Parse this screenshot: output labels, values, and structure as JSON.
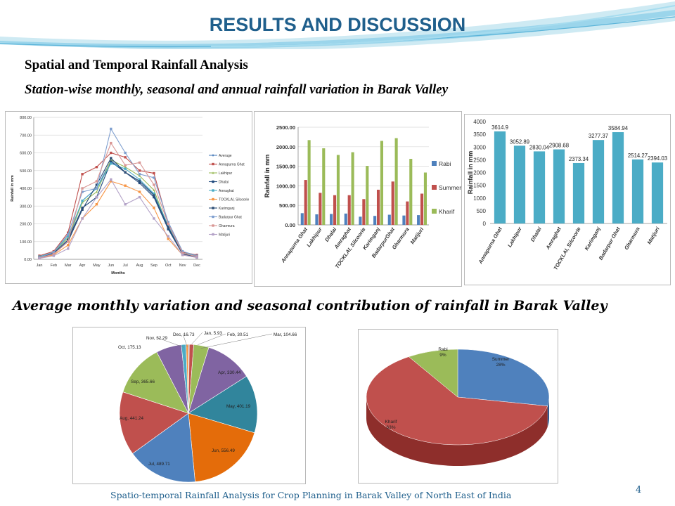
{
  "slide": {
    "title": "RESULTS AND DISCUSSION",
    "subtitle1": "Spatial and Temporal Rainfall Analysis",
    "subtitle2": "Station-wise monthly, seasonal and annual rainfall variation in Barak Valley",
    "subtitle3": "Average monthly variation and seasonal contribution of rainfall in Barak Valley",
    "footer": "Spatio-temporal Rainfall Analysis for Crop Planning in Barak Valley of North East of India",
    "page_number": "4"
  },
  "chart_data": [
    {
      "type": "line",
      "title": "",
      "xlabel": "Months",
      "ylabel": "Rainfall in mm",
      "categories": [
        "Jan",
        "Feb",
        "Mar",
        "Apr",
        "May",
        "Jun",
        "Jul",
        "Aug",
        "Sep",
        "Oct",
        "Nov",
        "Dec"
      ],
      "yticks": [
        "0.00",
        "100.00",
        "200.00",
        "300.00",
        "400.00",
        "500.00",
        "600.00",
        "700.00",
        "800.00"
      ],
      "ylim": [
        0,
        800
      ],
      "legend_position": "right",
      "grid": true,
      "series": [
        {
          "name": "Average",
          "color": "#4f81bd",
          "values": [
            5.93,
            30.51,
            104.66,
            330.44,
            401.19,
            556.49,
            489.71,
            441.24,
            365.66,
            175.13,
            32.29,
            16.73
          ]
        },
        {
          "name": "Annapurna Ghat",
          "color": "#c0504d",
          "values": [
            20,
            45,
            150,
            480,
            520,
            600,
            575,
            500,
            485,
            200,
            40,
            25
          ]
        },
        {
          "name": "Lakhipur",
          "color": "#9bbb59",
          "values": [
            12,
            40,
            120,
            320,
            380,
            560,
            520,
            470,
            390,
            180,
            35,
            20
          ]
        },
        {
          "name": "Dhalai",
          "color": "#1f497d",
          "values": [
            10,
            35,
            110,
            290,
            350,
            550,
            490,
            430,
            350,
            170,
            30,
            15
          ]
        },
        {
          "name": "Amraghat",
          "color": "#4bacc6",
          "values": [
            15,
            40,
            130,
            330,
            400,
            540,
            510,
            450,
            370,
            190,
            35,
            20
          ]
        },
        {
          "name": "TOCKLAI, Silcoorie",
          "color": "#f79646",
          "values": [
            5,
            25,
            80,
            230,
            310,
            440,
            415,
            380,
            290,
            115,
            25,
            10
          ]
        },
        {
          "name": "Karimganj",
          "color": "#2c4d75",
          "values": [
            10,
            30,
            100,
            280,
            420,
            570,
            490,
            440,
            360,
            180,
            30,
            12
          ]
        },
        {
          "name": "Badarpur Ghat",
          "color": "#7f9fcf",
          "values": [
            10,
            40,
            140,
            380,
            400,
            735,
            600,
            480,
            460,
            210,
            45,
            20
          ]
        },
        {
          "name": "Gharmura",
          "color": "#d99694",
          "values": [
            8,
            30,
            100,
            400,
            440,
            655,
            530,
            545,
            420,
            200,
            35,
            15
          ]
        },
        {
          "name": "Matijuri",
          "color": "#b3a2c7",
          "values": [
            5,
            20,
            60,
            230,
            350,
            450,
            310,
            350,
            230,
            130,
            25,
            10
          ]
        }
      ]
    },
    {
      "type": "bar",
      "title": "",
      "xlabel": "",
      "ylabel": "Rainfall in mm",
      "categories": [
        "Annapurna Ghat",
        "Lakhipur",
        "Dhalai",
        "Amraghat",
        "TOCKLAI, Silcoorie",
        "Karimganj",
        "BadarpurGhat",
        "Gharmura",
        "Matijuri"
      ],
      "yticks": [
        "0.00",
        "500.00",
        "1000.00",
        "1500.00",
        "2000.00",
        "2500.00"
      ],
      "ylim": [
        0,
        2500
      ],
      "legend_position": "right",
      "grid": true,
      "series": [
        {
          "name": "Rabi",
          "color": "#4f81bd",
          "values": [
            300,
            270,
            280,
            290,
            210,
            230,
            260,
            240,
            250
          ]
        },
        {
          "name": "Summer",
          "color": "#c0504d",
          "values": [
            1150,
            820,
            760,
            760,
            660,
            900,
            1110,
            600,
            800
          ]
        },
        {
          "name": "Kharif",
          "color": "#9bbb59",
          "values": [
            2170,
            1960,
            1790,
            1860,
            1510,
            2150,
            2220,
            1690,
            1340
          ]
        }
      ]
    },
    {
      "type": "bar",
      "title": "",
      "xlabel": "",
      "ylabel": "Rainfall in mm",
      "categories": [
        "Annapurna Ghat",
        "Lakhipur",
        "Dhalai",
        "Amraghat",
        "TOCKLAI, Silcoorie",
        "Karimganj",
        "Badarpur Ghat",
        "Gharmura",
        "Matijuri"
      ],
      "values": [
        3614.9,
        3052.89,
        2830.04,
        2908.68,
        2373.34,
        3277.37,
        3584.94,
        2514.27,
        2394.03
      ],
      "value_labels": [
        "3614.9",
        "3052.89",
        "2830.04",
        "2908.68",
        "2373.34",
        "3277.37",
        "3584.94",
        "2514.27",
        "2394.03"
      ],
      "yticks": [
        "0",
        "500",
        "1000",
        "1500",
        "2000",
        "2500",
        "3000",
        "3500",
        "4000"
      ],
      "ylim": [
        0,
        4000
      ],
      "color": "#4bacc6",
      "grid": true
    },
    {
      "type": "pie",
      "title": "",
      "labels": [
        "Jan",
        "Feb",
        "Mar",
        "Apr",
        "May",
        "Jun",
        "Jul",
        "Aug",
        "Sep",
        "Oct",
        "Nov",
        "Dec"
      ],
      "values": [
        5.93,
        30.51,
        104.66,
        330.44,
        401.19,
        556.49,
        489.71,
        441.24,
        365.66,
        175.13,
        32.29,
        16.73
      ],
      "slice_labels": [
        "Jan, 5.93",
        "Feb, 30.51",
        "Mar, 104.66",
        "Apr, 330.44",
        "May, 401.19",
        "Jun, 556.49",
        "Jul, 489.71",
        "Aug, 441.24",
        "Sep, 365.66",
        "Oct, 175.13",
        "Nov, 32.29",
        "Dec, 16.73"
      ],
      "colors": [
        "#4f81bd",
        "#c0504d",
        "#9bbb59",
        "#8064a2",
        "#31859c",
        "#e46c0a",
        "#4f81bd",
        "#c0504d",
        "#9bbb59",
        "#8064a2",
        "#4bacc6",
        "#f79646"
      ]
    },
    {
      "type": "pie",
      "title": "",
      "style": "3d",
      "labels": [
        "Summer",
        "Kharif",
        "Rabi"
      ],
      "values": [
        28,
        63,
        9
      ],
      "slice_labels": [
        "28%",
        "63%",
        "9%"
      ],
      "colors": [
        "#4f81bd",
        "#c0504d",
        "#9bbb59"
      ],
      "side_colors": [
        "#2f5a8f",
        "#8e2e2b",
        "#6f8a3a"
      ]
    }
  ]
}
